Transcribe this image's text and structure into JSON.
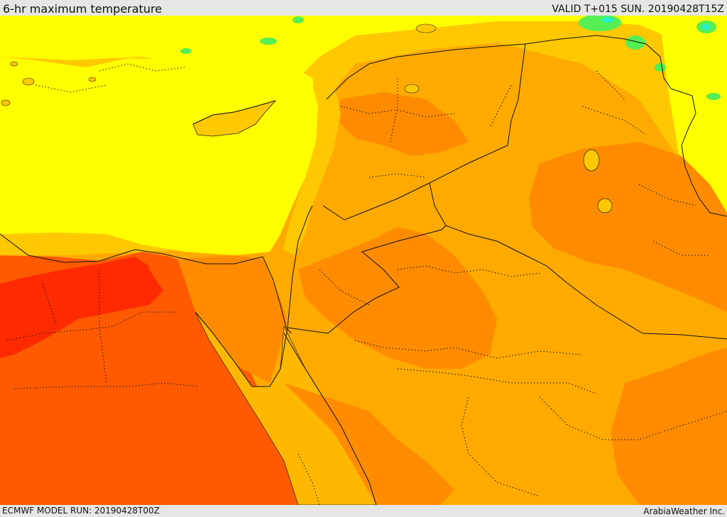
{
  "header": {
    "title": "6-hr maximum temperature",
    "valid": "VALID T+015 SUN. 20190428T15Z"
  },
  "footer": {
    "model_run": "ECMWF MODEL RUN: 20190428T00Z",
    "credit": "ArabiaWeather Inc."
  },
  "colors": {
    "sea_yellow": "#ffff00",
    "light_orange": "#ffc800",
    "orange": "#ffaa00",
    "dark_orange": "#ff8c00",
    "red_orange": "#ff5a00",
    "red": "#ff2a00",
    "green": "#55ee55",
    "cyan": "#22eecc"
  }
}
